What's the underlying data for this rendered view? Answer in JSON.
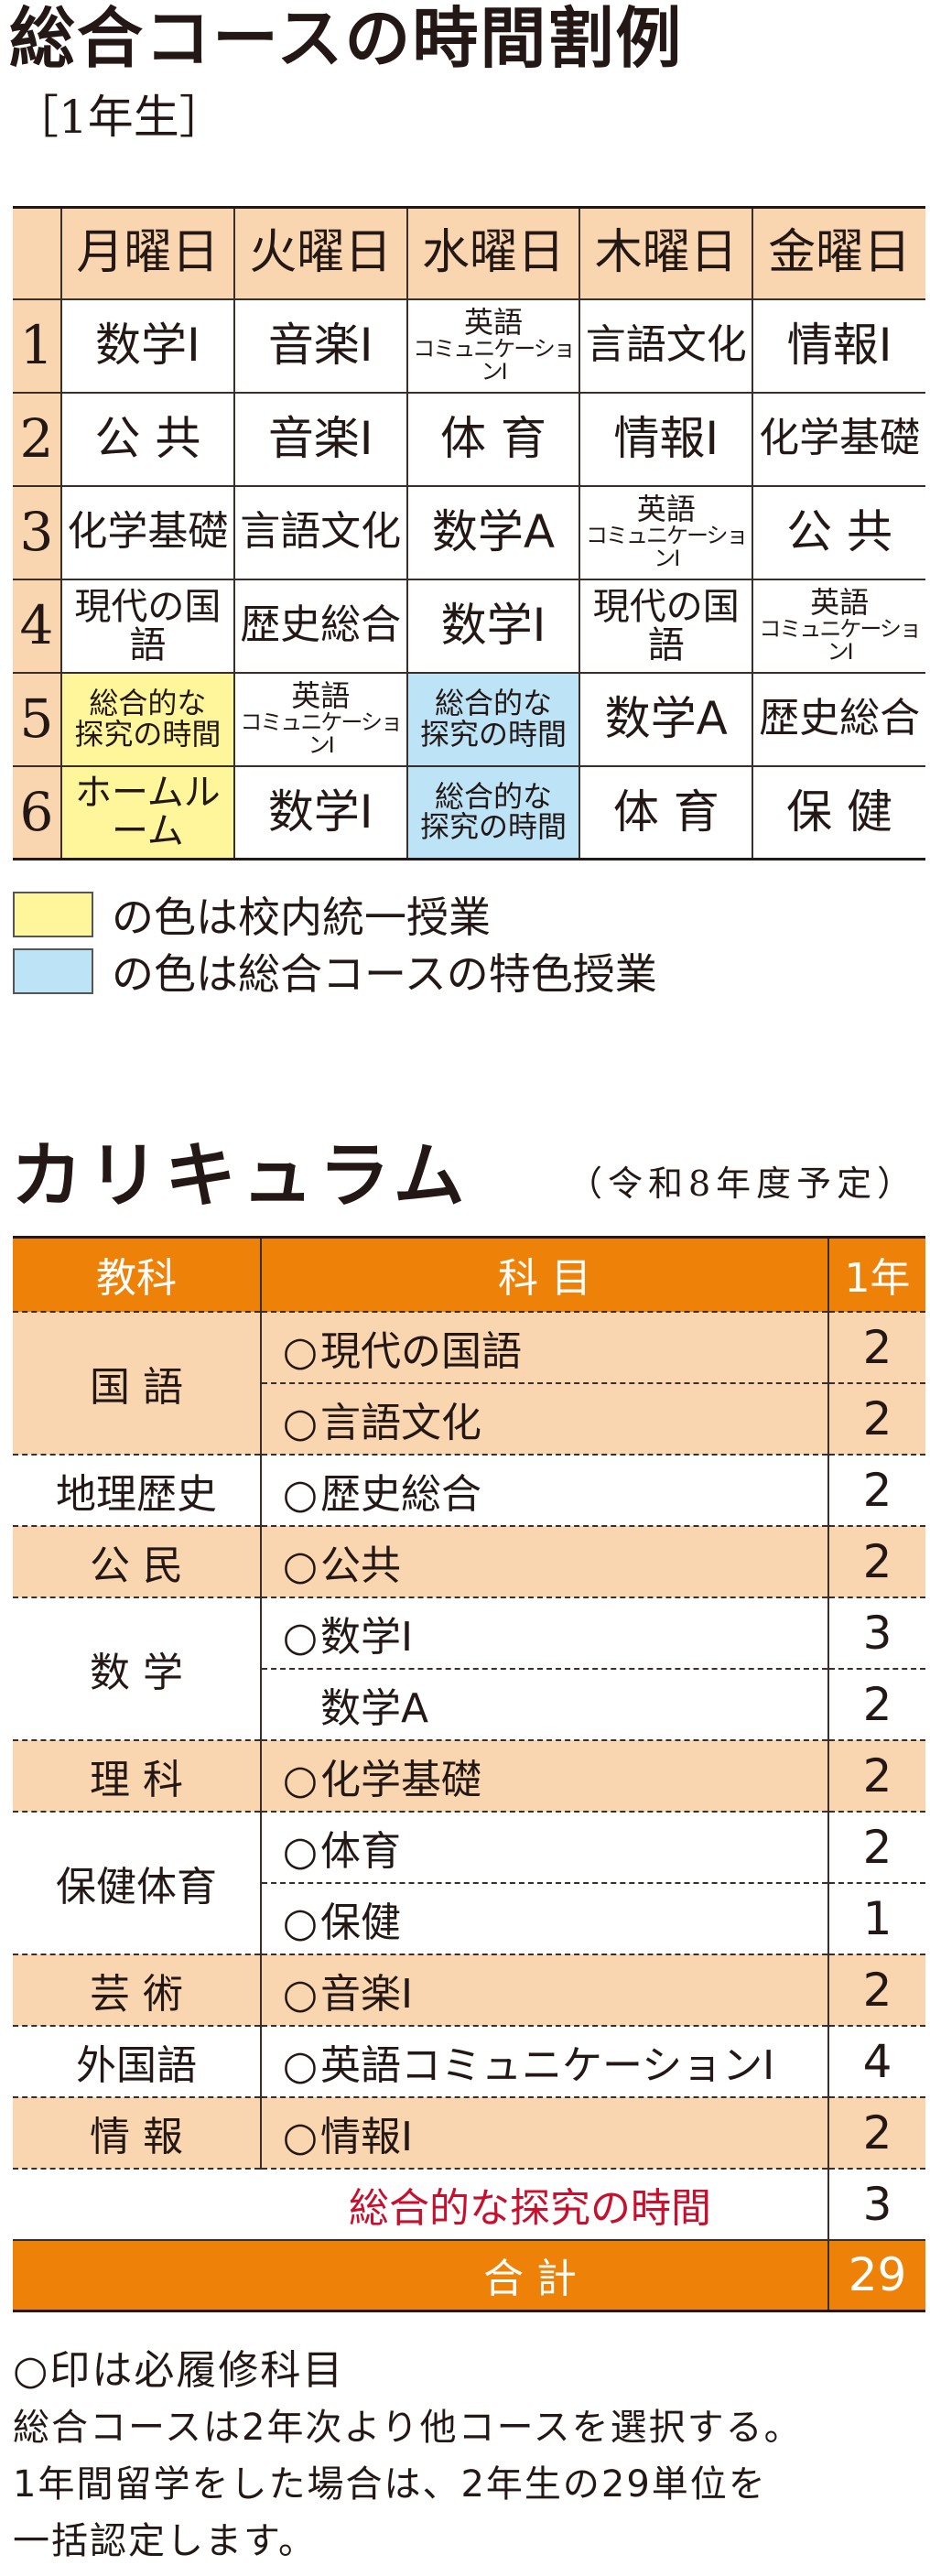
{
  "timetable": {
    "title": "総合コースの時間割例",
    "grade": "［1年生］",
    "days": [
      "月曜日",
      "火曜日",
      "水曜日",
      "木曜日",
      "金曜日"
    ],
    "colors": {
      "header": "#f9d6b0",
      "school_unified": "#fff59a",
      "course_special": "#bde3f7"
    },
    "rows": [
      {
        "period": "1",
        "cells": [
          {
            "lines": [
              "数学Ⅰ"
            ]
          },
          {
            "lines": [
              "音楽Ⅰ"
            ]
          },
          {
            "lines": [
              "英語",
              "コミュニケーションⅠ"
            ]
          },
          {
            "lines": [
              "言語文化"
            ]
          },
          {
            "lines": [
              "情報Ⅰ"
            ]
          }
        ]
      },
      {
        "period": "2",
        "cells": [
          {
            "lines": [
              "公 共"
            ]
          },
          {
            "lines": [
              "音楽Ⅰ"
            ]
          },
          {
            "lines": [
              "体 育"
            ]
          },
          {
            "lines": [
              "情報Ⅰ"
            ]
          },
          {
            "lines": [
              "化学基礎"
            ]
          }
        ]
      },
      {
        "period": "3",
        "cells": [
          {
            "lines": [
              "化学基礎"
            ]
          },
          {
            "lines": [
              "言語文化"
            ]
          },
          {
            "lines": [
              "数学A"
            ]
          },
          {
            "lines": [
              "英語",
              "コミュニケーションⅠ"
            ]
          },
          {
            "lines": [
              "公 共"
            ]
          }
        ]
      },
      {
        "period": "4",
        "cells": [
          {
            "lines": [
              "現代の国語"
            ]
          },
          {
            "lines": [
              "歴史総合"
            ]
          },
          {
            "lines": [
              "数学Ⅰ"
            ]
          },
          {
            "lines": [
              "現代の国語"
            ]
          },
          {
            "lines": [
              "英語",
              "コミュニケーションⅠ"
            ]
          }
        ]
      },
      {
        "period": "5",
        "cells": [
          {
            "lines": [
              "総合的な",
              "探究の時間"
            ],
            "color": "school_unified"
          },
          {
            "lines": [
              "英語",
              "コミュニケーションⅠ"
            ]
          },
          {
            "lines": [
              "総合的な",
              "探究の時間"
            ],
            "color": "course_special"
          },
          {
            "lines": [
              "数学A"
            ]
          },
          {
            "lines": [
              "歴史総合"
            ]
          }
        ]
      },
      {
        "period": "6",
        "cells": [
          {
            "lines": [
              "ホームルーム"
            ],
            "color": "school_unified"
          },
          {
            "lines": [
              "数学Ⅰ"
            ]
          },
          {
            "lines": [
              "総合的な",
              "探究の時間"
            ],
            "color": "course_special"
          },
          {
            "lines": [
              "体 育"
            ]
          },
          {
            "lines": [
              "保 健"
            ]
          }
        ]
      }
    ],
    "legend": [
      {
        "color": "school_unified",
        "text": "の色は校内統一授業"
      },
      {
        "color": "course_special",
        "text": "の色は総合コースの特色授業"
      }
    ]
  },
  "curriculum": {
    "title": "カリキュラム",
    "note": "（令和8年度予定）",
    "headers": {
      "category": "教科",
      "subject": "科 目",
      "credits": "1年"
    },
    "required_mark": "○",
    "colors": {
      "header": "#ee8208",
      "shade": "#f9d6b0",
      "inquiry_text": "#c8102e"
    },
    "groups": [
      {
        "category": "国 語",
        "shaded": true,
        "subjects": [
          {
            "name": "現代の国語",
            "required": true,
            "credits": "2"
          },
          {
            "name": "言語文化",
            "required": true,
            "credits": "2"
          }
        ]
      },
      {
        "category": "地理歴史",
        "shaded": false,
        "subjects": [
          {
            "name": "歴史総合",
            "required": true,
            "credits": "2"
          }
        ]
      },
      {
        "category": "公 民",
        "shaded": true,
        "subjects": [
          {
            "name": "公共",
            "required": true,
            "credits": "2"
          }
        ]
      },
      {
        "category": "数 学",
        "shaded": false,
        "subjects": [
          {
            "name": "数学Ⅰ",
            "required": true,
            "credits": "3"
          },
          {
            "name": "数学A",
            "required": false,
            "credits": "2"
          }
        ]
      },
      {
        "category": "理 科",
        "shaded": true,
        "subjects": [
          {
            "name": "化学基礎",
            "required": true,
            "credits": "2"
          }
        ]
      },
      {
        "category": "保健体育",
        "shaded": false,
        "subjects": [
          {
            "name": "体育",
            "required": true,
            "credits": "2"
          },
          {
            "name": "保健",
            "required": true,
            "credits": "1"
          }
        ]
      },
      {
        "category": "芸 術",
        "shaded": true,
        "subjects": [
          {
            "name": "音楽Ⅰ",
            "required": true,
            "credits": "2"
          }
        ]
      },
      {
        "category": "外国語",
        "shaded": false,
        "subjects": [
          {
            "name": "英語コミュニケーションⅠ",
            "required": true,
            "credits": "4"
          }
        ]
      },
      {
        "category": "情 報",
        "shaded": true,
        "subjects": [
          {
            "name": "情報Ⅰ",
            "required": true,
            "credits": "2"
          }
        ]
      }
    ],
    "inquiry": {
      "label": "総合的な探究の時間",
      "credits": "3"
    },
    "total": {
      "label": "合 計",
      "credits": "29"
    }
  },
  "notes": [
    "○印は必履修科目",
    "総合コースは2年次より他コースを選択する。",
    "1年間留学をした場合は、2年生の29単位を",
    "一括認定します。"
  ]
}
